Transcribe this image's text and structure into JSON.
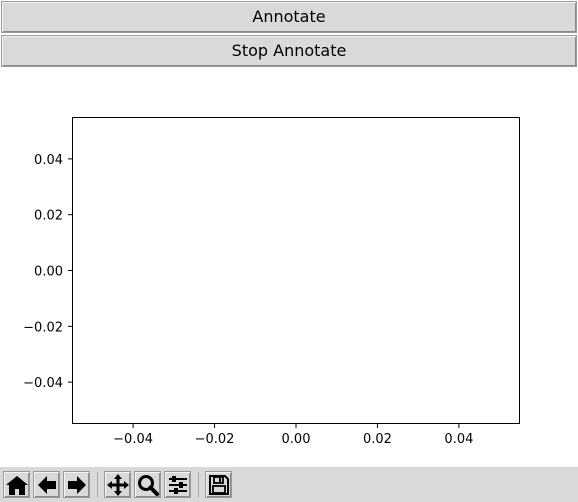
{
  "buttons": {
    "annotate_label": "Annotate",
    "stop_annotate_label": "Stop Annotate"
  },
  "chart_data": {
    "type": "line",
    "title": "",
    "xlabel": "",
    "ylabel": "",
    "xlim": [
      -0.055,
      0.055
    ],
    "ylim": [
      -0.055,
      0.055
    ],
    "xticks": [
      -0.04,
      -0.02,
      0.0,
      0.02,
      0.04
    ],
    "yticks": [
      -0.04,
      -0.02,
      0.0,
      0.02,
      0.04
    ],
    "xtick_labels": [
      "−0.04",
      "−0.02",
      "0.00",
      "0.02",
      "0.04"
    ],
    "ytick_labels": [
      "−0.04",
      "−0.02",
      "0.00",
      "0.02",
      "0.04"
    ],
    "series": [],
    "grid": false
  },
  "toolbar": {
    "tools": [
      {
        "name": "home-icon"
      },
      {
        "name": "back-arrow-icon"
      },
      {
        "name": "forward-arrow-icon"
      },
      {
        "name": "pan-icon"
      },
      {
        "name": "zoom-icon"
      },
      {
        "name": "configure-subplots-icon"
      },
      {
        "name": "save-icon"
      }
    ]
  },
  "colors": {
    "button_bg": "#d9d9d9",
    "toolbar_bg": "#d9d9d9",
    "axes_edge": "#000000"
  }
}
